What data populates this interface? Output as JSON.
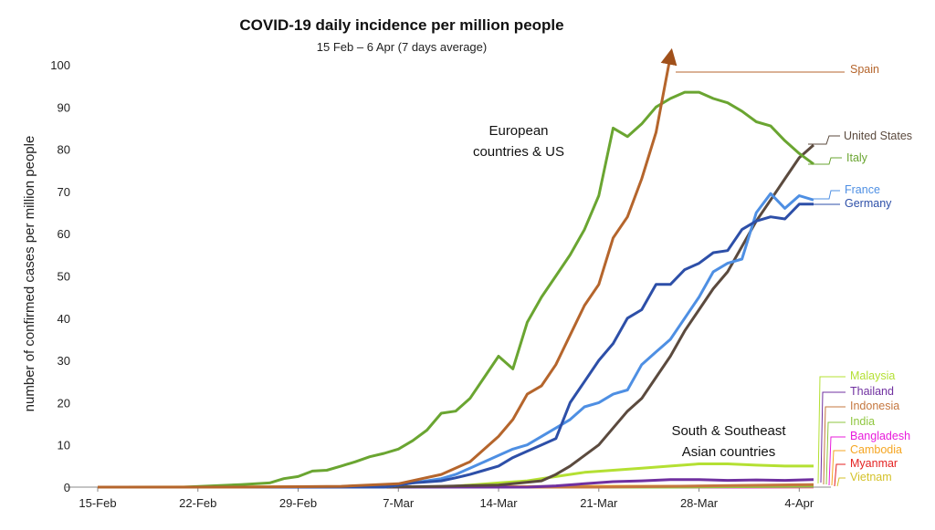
{
  "chart_data": {
    "type": "line",
    "title": "COVID-19 daily incidence per million people",
    "subtitle": "15 Feb – 6 Apr (7 days average)",
    "ylabel": "number of confirmed cases per million people",
    "xlabel": "",
    "ylim": [
      0,
      100
    ],
    "yticks": [
      0,
      10,
      20,
      30,
      40,
      50,
      60,
      70,
      80,
      90,
      100
    ],
    "x_start": "15-Feb",
    "x_end": "6-Apr",
    "xtick_labels": [
      "15-Feb",
      "22-Feb",
      "29-Feb",
      "7-Mar",
      "14-Mar",
      "21-Mar",
      "28-Mar",
      "4-Apr"
    ],
    "xtick_days": [
      0,
      7,
      14,
      21,
      28,
      35,
      42,
      49
    ],
    "grid": false,
    "legend": "labels at right end of each line",
    "annotations": [
      {
        "text_lines": [
          "European",
          "countries & US"
        ]
      },
      {
        "text_lines": [
          "South & Southeast",
          "Asian countries"
        ]
      }
    ],
    "series": [
      {
        "name": "Spain",
        "color": "#b5652c",
        "arrow": true,
        "points": [
          [
            0,
            0
          ],
          [
            10,
            0
          ],
          [
            17,
            0.2
          ],
          [
            21,
            0.8
          ],
          [
            24,
            3
          ],
          [
            26,
            6
          ],
          [
            28,
            12
          ],
          [
            29,
            16
          ],
          [
            30,
            22
          ],
          [
            31,
            24
          ],
          [
            32,
            29
          ],
          [
            33,
            36
          ],
          [
            34,
            43
          ],
          [
            35,
            48
          ],
          [
            36,
            59
          ],
          [
            37,
            64
          ],
          [
            38,
            73
          ],
          [
            39,
            84
          ],
          [
            40,
            102
          ]
        ]
      },
      {
        "name": "Italy",
        "color": "#6aa531",
        "points": [
          [
            0,
            0
          ],
          [
            6,
            0
          ],
          [
            8,
            0.3
          ],
          [
            10,
            0.6
          ],
          [
            12,
            1
          ],
          [
            13,
            2
          ],
          [
            14,
            2.5
          ],
          [
            15,
            3.8
          ],
          [
            16,
            4
          ],
          [
            17,
            5
          ],
          [
            18,
            6
          ],
          [
            19,
            7.2
          ],
          [
            20,
            8
          ],
          [
            21,
            9
          ],
          [
            22,
            11
          ],
          [
            23,
            13.5
          ],
          [
            24,
            17.5
          ],
          [
            25,
            18
          ],
          [
            26,
            21
          ],
          [
            27,
            26
          ],
          [
            28,
            31
          ],
          [
            29,
            28
          ],
          [
            30,
            39
          ],
          [
            31,
            45
          ],
          [
            32,
            50
          ],
          [
            33,
            55
          ],
          [
            34,
            61
          ],
          [
            35,
            69
          ],
          [
            36,
            85
          ],
          [
            37,
            83
          ],
          [
            38,
            86
          ],
          [
            39,
            90
          ],
          [
            40,
            92
          ],
          [
            41,
            93.5
          ],
          [
            42,
            93.5
          ],
          [
            43,
            92
          ],
          [
            44,
            91
          ],
          [
            45,
            89
          ],
          [
            46,
            86.5
          ],
          [
            47,
            85.5
          ],
          [
            48,
            82
          ],
          [
            49,
            79
          ],
          [
            50,
            76.5
          ]
        ]
      },
      {
        "name": "United States",
        "color": "#5b4a3e",
        "points": [
          [
            0,
            0
          ],
          [
            20,
            0
          ],
          [
            24,
            0.2
          ],
          [
            28,
            0.5
          ],
          [
            31,
            1.5
          ],
          [
            32,
            3
          ],
          [
            33,
            5
          ],
          [
            34,
            7.5
          ],
          [
            35,
            10
          ],
          [
            36,
            14
          ],
          [
            37,
            18
          ],
          [
            38,
            21
          ],
          [
            39,
            26
          ],
          [
            40,
            31
          ],
          [
            41,
            37
          ],
          [
            42,
            42
          ],
          [
            43,
            47
          ],
          [
            44,
            51
          ],
          [
            45,
            57
          ],
          [
            46,
            63
          ],
          [
            47,
            68
          ],
          [
            48,
            73
          ],
          [
            49,
            78
          ],
          [
            50,
            81
          ]
        ]
      },
      {
        "name": "France",
        "color": "#4e8fe3",
        "points": [
          [
            0,
            0
          ],
          [
            20,
            0
          ],
          [
            22,
            1
          ],
          [
            24,
            2
          ],
          [
            25,
            3
          ],
          [
            26,
            4.5
          ],
          [
            27,
            6
          ],
          [
            28,
            7.5
          ],
          [
            29,
            9
          ],
          [
            30,
            10
          ],
          [
            31,
            12
          ],
          [
            32,
            14
          ],
          [
            33,
            16
          ],
          [
            34,
            19
          ],
          [
            35,
            20
          ],
          [
            36,
            22
          ],
          [
            37,
            23
          ],
          [
            38,
            29
          ],
          [
            39,
            32
          ],
          [
            40,
            35
          ],
          [
            41,
            40
          ],
          [
            42,
            45
          ],
          [
            43,
            51
          ],
          [
            44,
            53
          ],
          [
            45,
            54
          ],
          [
            46,
            65
          ],
          [
            47,
            69.5
          ],
          [
            48,
            66
          ],
          [
            49,
            69
          ],
          [
            50,
            68
          ]
        ]
      },
      {
        "name": "Germany",
        "color": "#2d4fa8",
        "points": [
          [
            0,
            0
          ],
          [
            20,
            0
          ],
          [
            22,
            1
          ],
          [
            24,
            1.5
          ],
          [
            25,
            2.2
          ],
          [
            26,
            3
          ],
          [
            27,
            4
          ],
          [
            28,
            5
          ],
          [
            29,
            7
          ],
          [
            30,
            8.5
          ],
          [
            31,
            10
          ],
          [
            32,
            11.5
          ],
          [
            33,
            20
          ],
          [
            34,
            25
          ],
          [
            35,
            30
          ],
          [
            36,
            34
          ],
          [
            37,
            40
          ],
          [
            38,
            42
          ],
          [
            39,
            48
          ],
          [
            40,
            48
          ],
          [
            41,
            51.5
          ],
          [
            42,
            53
          ],
          [
            43,
            55.5
          ],
          [
            44,
            56
          ],
          [
            45,
            61
          ],
          [
            46,
            63
          ],
          [
            47,
            64
          ],
          [
            48,
            63.5
          ],
          [
            49,
            67
          ],
          [
            50,
            67
          ]
        ]
      },
      {
        "name": "Malaysia",
        "color": "#b4e033",
        "points": [
          [
            0,
            0
          ],
          [
            24,
            0
          ],
          [
            26,
            0.5
          ],
          [
            28,
            1
          ],
          [
            30,
            1.5
          ],
          [
            32,
            2.5
          ],
          [
            34,
            3.5
          ],
          [
            36,
            4
          ],
          [
            38,
            4.5
          ],
          [
            40,
            5
          ],
          [
            42,
            5.5
          ],
          [
            44,
            5.5
          ],
          [
            46,
            5.2
          ],
          [
            48,
            5
          ],
          [
            50,
            5
          ]
        ]
      },
      {
        "name": "Thailand",
        "color": "#7030a0",
        "points": [
          [
            0,
            0
          ],
          [
            30,
            0
          ],
          [
            32,
            0.3
          ],
          [
            34,
            0.8
          ],
          [
            36,
            1.3
          ],
          [
            38,
            1.5
          ],
          [
            40,
            1.8
          ],
          [
            42,
            1.8
          ],
          [
            44,
            1.6
          ],
          [
            46,
            1.7
          ],
          [
            48,
            1.6
          ],
          [
            50,
            1.8
          ]
        ]
      },
      {
        "name": "Indonesia",
        "color": "#c5773f",
        "points": [
          [
            0,
            0
          ],
          [
            35,
            0
          ],
          [
            40,
            0.2
          ],
          [
            45,
            0.4
          ],
          [
            50,
            0.6
          ]
        ]
      },
      {
        "name": "India",
        "color": "#8fc63f",
        "points": [
          [
            0,
            0
          ],
          [
            40,
            0
          ],
          [
            45,
            0.1
          ],
          [
            50,
            0.2
          ]
        ]
      },
      {
        "name": "Bangladesh",
        "color": "#e81cdb",
        "points": [
          [
            0,
            0
          ],
          [
            44,
            0
          ],
          [
            50,
            0.1
          ]
        ]
      },
      {
        "name": "Cambodia",
        "color": "#f5a623",
        "points": [
          [
            0,
            0
          ],
          [
            30,
            0.1
          ],
          [
            40,
            0.2
          ],
          [
            50,
            0.3
          ]
        ]
      },
      {
        "name": "Myanmar",
        "color": "#e42222",
        "points": [
          [
            0,
            0
          ],
          [
            50,
            0.05
          ]
        ]
      },
      {
        "name": "Vietnam",
        "color": "#d4c22a",
        "points": [
          [
            0,
            0
          ],
          [
            28,
            0.1
          ],
          [
            40,
            0.2
          ],
          [
            50,
            0.2
          ]
        ]
      }
    ]
  }
}
